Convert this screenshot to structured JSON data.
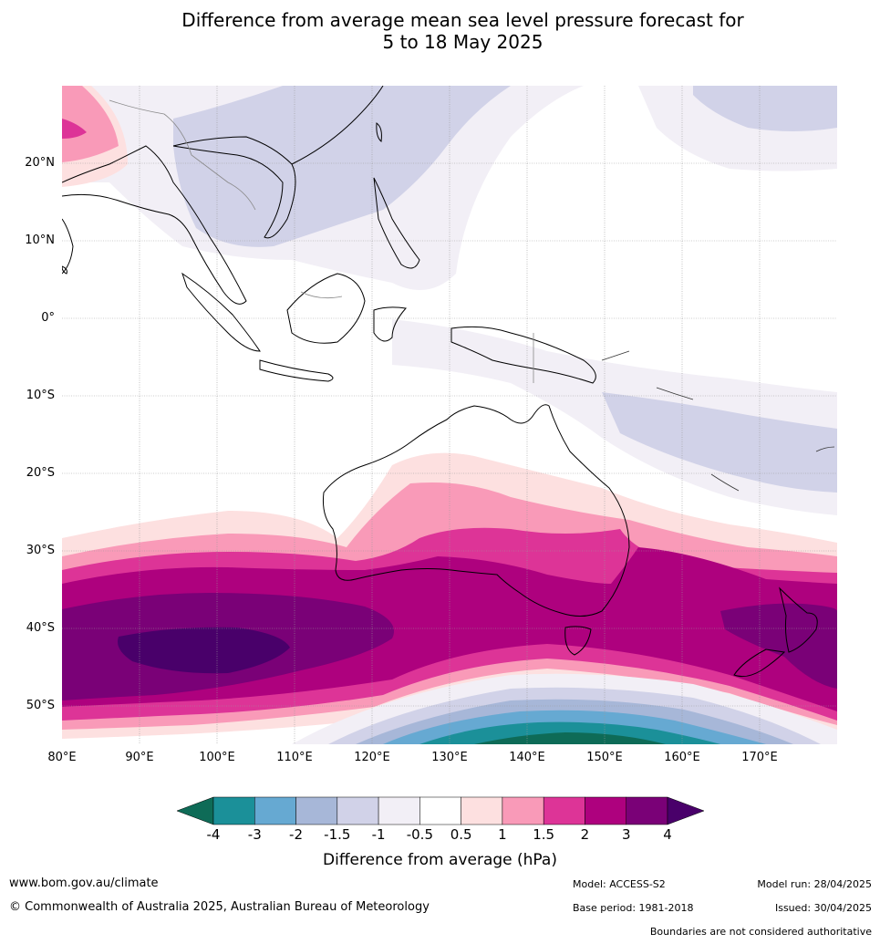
{
  "title_line1": "Difference from average mean sea level pressure forecast for",
  "title_line2": "5 to 18 May 2025",
  "map": {
    "lon_range": [
      80,
      180
    ],
    "lat_range": [
      -55,
      30
    ],
    "lat_labels": [
      {
        "value": 20,
        "text": "20°N"
      },
      {
        "value": 10,
        "text": "10°N"
      },
      {
        "value": 0,
        "text": "0°"
      },
      {
        "value": -10,
        "text": "10°S"
      },
      {
        "value": -20,
        "text": "20°S"
      },
      {
        "value": -30,
        "text": "30°S"
      },
      {
        "value": -40,
        "text": "40°S"
      },
      {
        "value": -50,
        "text": "50°S"
      }
    ],
    "lon_labels": [
      {
        "value": 80,
        "text": "80°E"
      },
      {
        "value": 90,
        "text": "90°E"
      },
      {
        "value": 100,
        "text": "100°E"
      },
      {
        "value": 110,
        "text": "110°E"
      },
      {
        "value": 120,
        "text": "120°E"
      },
      {
        "value": 130,
        "text": "130°E"
      },
      {
        "value": 140,
        "text": "140°E"
      },
      {
        "value": 150,
        "text": "150°E"
      },
      {
        "value": 160,
        "text": "160°E"
      },
      {
        "value": 170,
        "text": "170°E"
      }
    ]
  },
  "colorbar": {
    "title": "Difference from average (hPa)",
    "tick_labels": [
      "-4",
      "-3",
      "-2",
      "-1.5",
      "-1",
      "-0.5",
      "0.5",
      "1",
      "1.5",
      "2",
      "3",
      "4"
    ],
    "colors": [
      "#0e6b57",
      "#1b9099",
      "#66a9d2",
      "#a7b7d8",
      "#d1d2e8",
      "#f2eff6",
      "#ffffff",
      "#fde0e0",
      "#f99ab8",
      "#dd3497",
      "#ae017e",
      "#7a0177",
      "#49006a"
    ]
  },
  "footer": {
    "website": "www.bom.gov.au/climate",
    "copyright": "© Commonwealth of Australia 2025, Australian Bureau of Meteorology",
    "model": "Model: ACCESS-S2",
    "base_period": "Base period: 1981-2018",
    "model_run": "Model run: 28/04/2025",
    "issued": "Issued: 30/04/2025",
    "disclaimer": "Boundaries are not considered authoritative"
  }
}
